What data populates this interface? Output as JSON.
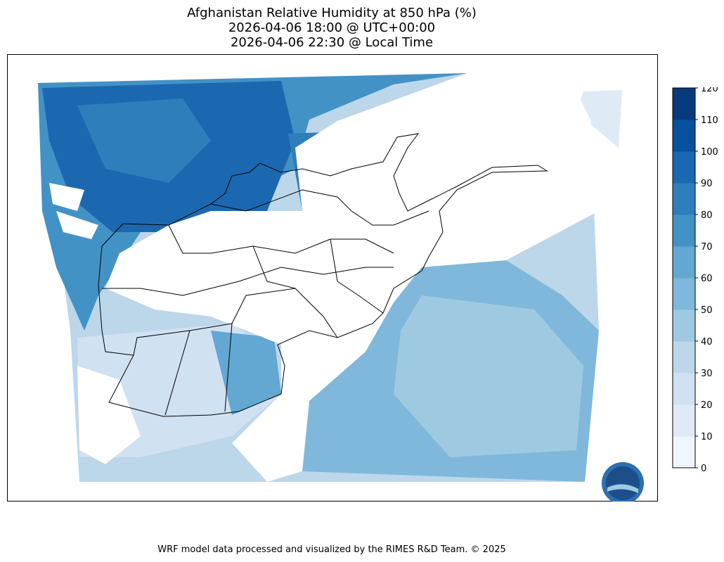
{
  "title": {
    "line1": "Afghanistan Relative Humidity at 850 hPa (%)",
    "line2": "2026-04-06 18:00 @ UTC+00:00",
    "line3": "2026-04-06 22:30 @ Local Time"
  },
  "chart_data": {
    "type": "heatmap",
    "variable": "Relative Humidity at 850 hPa (%)",
    "colorbar": {
      "levels": [
        0,
        10,
        20,
        30,
        40,
        50,
        60,
        70,
        80,
        90,
        100,
        110,
        120
      ],
      "tick_labels": [
        "0",
        "10",
        "20",
        "30",
        "40",
        "50",
        "60",
        "70",
        "80",
        "90",
        "100",
        "110",
        "120"
      ],
      "colors": [
        "#f0f6fd",
        "#deebf7",
        "#d0e1f2",
        "#bcd6ea",
        "#9ecae1",
        "#7fb8da",
        "#62a8d3",
        "#4292c6",
        "#2e7ebc",
        "#1c68b0",
        "#08519c",
        "#083b7c"
      ],
      "orientation": "vertical",
      "placement": "right"
    },
    "regions": [
      {
        "area": "north-west (Turkmenistan/Iran north)",
        "range": "80-100"
      },
      {
        "area": "Afghanistan interior",
        "range": "masked / terrain"
      },
      {
        "area": "south-west (Iran/Baluchistan)",
        "range": "20-50"
      },
      {
        "area": "south-east (Pakistan/India)",
        "range": "30-60"
      }
    ]
  },
  "logo": {
    "text": "RIMES"
  },
  "footer": "WRF model data processed and visualized by the RIMES R&D Team. © 2025"
}
